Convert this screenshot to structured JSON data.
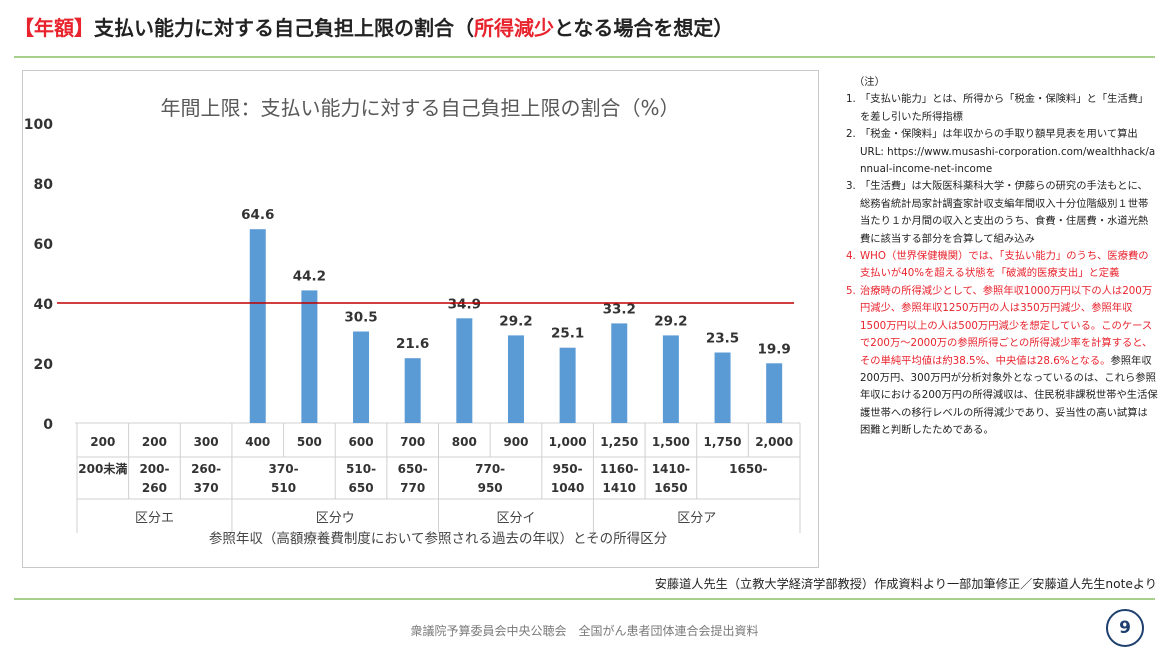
{
  "title": {
    "part1": "【年額】",
    "part2": "支払い能力に対する自己負担上限の割合（",
    "part3": "所得減少",
    "part4": "となる場合を想定）"
  },
  "chart_data": {
    "type": "bar",
    "title": "年間上限：支払い能力に対する自己負担上限の割合（%）",
    "ylim": [
      0,
      100
    ],
    "yticks": [
      "0",
      "20",
      "40",
      "60",
      "80",
      "100"
    ],
    "threshold": 40,
    "threshold_color": "#c00000",
    "bar_color": "#5b9bd5",
    "categories": [
      "200",
      "200",
      "300",
      "400",
      "500",
      "600",
      "700",
      "800",
      "900",
      "1,000",
      "1,250",
      "1,500",
      "1,750",
      "2,000"
    ],
    "values": [
      null,
      null,
      null,
      64.6,
      44.2,
      30.5,
      21.6,
      34.9,
      29.2,
      25.1,
      33.2,
      29.2,
      23.5,
      19.9
    ],
    "value_labels": [
      "",
      "",
      "",
      "64.6",
      "44.2",
      "30.5",
      "21.6",
      "34.9",
      "29.2",
      "25.1",
      "33.2",
      "29.2",
      "23.5",
      "19.9"
    ],
    "income_ranges": [
      {
        "line1": "200未満",
        "line2": "",
        "span": 1
      },
      {
        "line1": "200-",
        "line2": "260",
        "span": 1
      },
      {
        "line1": "260-",
        "line2": "370",
        "span": 1
      },
      {
        "line1": "370-",
        "line2": "510",
        "span": 2
      },
      {
        "line1": "510-",
        "line2": "650",
        "span": 1
      },
      {
        "line1": "650-",
        "line2": "770",
        "span": 1
      },
      {
        "line1": "770-",
        "line2": "950",
        "span": 2
      },
      {
        "line1": "950-",
        "line2": "1040",
        "span": 1
      },
      {
        "line1": "1160-",
        "line2": "1410",
        "span": 1
      },
      {
        "line1": "1410-",
        "line2": "1650",
        "span": 1
      },
      {
        "line1": "1650-",
        "line2": "",
        "span": 2
      }
    ],
    "categories_group": [
      {
        "label": "区分エ",
        "span": 3
      },
      {
        "label": "区分ウ",
        "span": 4
      },
      {
        "label": "区分イ",
        "span": 3
      },
      {
        "label": "区分ア",
        "span": 4
      }
    ],
    "xlabel": "参照年収（高額療養費制度において参照される過去の年収）とその所得区分"
  },
  "notes": {
    "header": "（注）",
    "items": [
      {
        "num": "1.",
        "text": "「支払い能力」とは、所得から「税金・保険料」と「生活費」を差し引いた所得指標"
      },
      {
        "num": "2.",
        "text": "「税金・保険料」は年収からの手取り額早見表を用いて算出",
        "url": "URL: https://www.musashi-corporation.com/wealthhack/annual-income-net-income"
      },
      {
        "num": "3.",
        "text": "「生活費」は大阪医科薬科大学・伊藤らの研究の手法もとに、総務省統計局家計調査家計収支編年間収入十分位階級別１世帯当たり１か月間の収入と支出のうち、食費・住居費・水道光熱費に該当する部分を合算して組み込み"
      },
      {
        "num": "4.",
        "text": "WHO（世界保健機関）では、「支払い能力」のうち、医療費の支払いが40%を超える状態を「破滅的医療支出」と定義"
      },
      {
        "num": "5.",
        "text": "治療時の所得減少として、参照年収1000万円以下の人は200万円減少、参照年収1250万円の人は350万円減少、参照年収1500万円以上の人は500万円減少を想定している。このケースで200万～2000万の参照所得ごとの所得減少率を計算すると、その単純平均値は約38.5%、中央値は28.6%となる。",
        "text_black": "参照年収200万円、300万円が分析対象外となっているのは、これら参照年収における200万円の所得減収は、住民税非課税世帯や生活保護世帯への移行レベルの所得減少であり、妥当性の高い試算は困難と判断したためである。"
      }
    ]
  },
  "credit": "安藤道人先生（立教大学経済学部教授）作成資料より一部加筆修正／安藤道人先生noteより",
  "footer": "衆議院予算委員会中央公聴会　全国がん患者団体連合会提出資料",
  "page_number": "9"
}
